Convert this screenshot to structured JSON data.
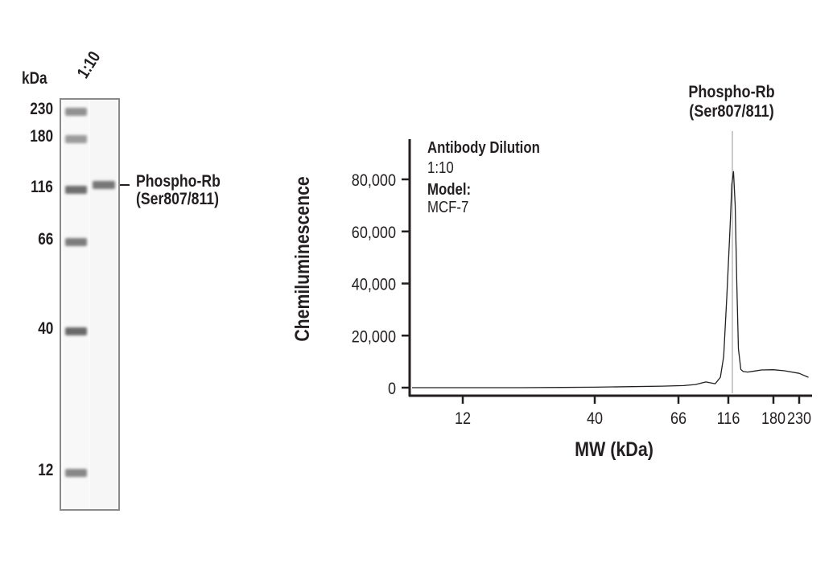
{
  "gel": {
    "unit_label": "kDa",
    "lane_label": "1:10",
    "ladder": [
      {
        "label": "230",
        "y": 137,
        "intensity": 0.55
      },
      {
        "label": "180",
        "y": 171,
        "intensity": 0.5
      },
      {
        "label": "116",
        "y": 234,
        "intensity": 0.72
      },
      {
        "label": "66",
        "y": 299,
        "intensity": 0.65
      },
      {
        "label": "40",
        "y": 410,
        "intensity": 0.75
      },
      {
        "label": "12",
        "y": 586,
        "intensity": 0.6
      }
    ],
    "sample_band": {
      "y": 228,
      "intensity": 0.68
    },
    "target_label_line1": "Phospho-Rb",
    "target_label_line2": "(Ser807/811)"
  },
  "chart_data": {
    "type": "line",
    "title": "",
    "xlabel": "MW (kDa)",
    "ylabel": "Chemiluminescence",
    "x_scale": "log",
    "x_ticks": [
      12,
      40,
      66,
      116,
      180,
      230
    ],
    "x_tick_labels": [
      "12",
      "40",
      "66",
      "116",
      "180",
      "230"
    ],
    "y_ticks": [
      0,
      20000,
      40000,
      60000,
      80000
    ],
    "y_tick_labels": [
      "0",
      "20,000",
      "40,000",
      "60,000",
      "80,000"
    ],
    "ylim": [
      -3000,
      90000
    ],
    "xlim": [
      8,
      270
    ],
    "grid": false,
    "legend": null,
    "annotations": [
      {
        "label": "Antibody Dilution",
        "value": "1:10"
      },
      {
        "label": "Model:",
        "value": "MCF-7"
      }
    ],
    "peak_label_line1": "Phospho-Rb",
    "peak_label_line2": "(Ser807/811)",
    "peak": {
      "x_kda": 122,
      "y": 83000
    },
    "series": [
      {
        "name": "Phospho-Rb (Ser807/811) 1:10, MCF-7",
        "x": [
          8,
          12,
          20,
          30,
          40,
          50,
          60,
          70,
          80,
          90,
          100,
          106,
          110,
          114,
          118,
          120,
          122,
          124,
          126,
          128,
          131,
          134,
          140,
          150,
          160,
          180,
          200,
          230,
          260
        ],
        "y": [
          0,
          0,
          0,
          100,
          200,
          400,
          600,
          800,
          1200,
          2200,
          1500,
          4000,
          12000,
          35000,
          62000,
          78000,
          83000,
          70000,
          40000,
          15000,
          7000,
          6200,
          6000,
          6400,
          6800,
          6900,
          6500,
          5500,
          4000
        ]
      }
    ]
  },
  "axes": {
    "y_axis_label": "Chemiluminescence",
    "x_axis_label": "MW (kDa)",
    "legend_title": "Antibody Dilution",
    "legend_value": "1:10",
    "model_title": "Model:",
    "model_value": "MCF-7"
  }
}
